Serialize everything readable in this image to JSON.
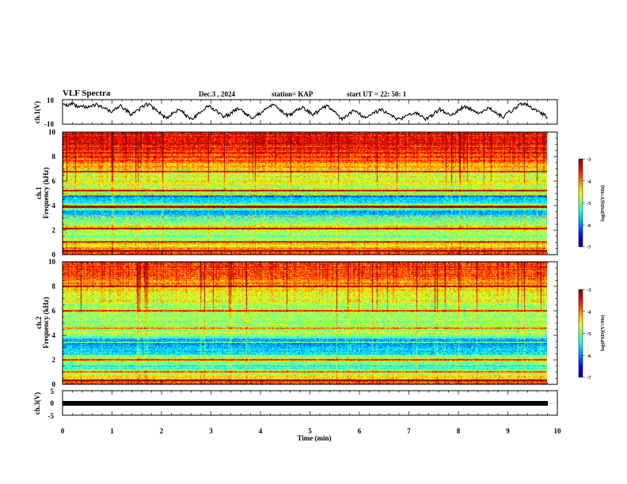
{
  "header": {
    "title": "VLF Spectra",
    "date": "Dec.3  , 2024",
    "station": "station= KAP",
    "start_ut": "start  UT  =   22: 50: 1"
  },
  "chart_data": [
    {
      "type": "line",
      "name": "ch1-waveform",
      "ylabel": "ch.1(V)",
      "ylim": [
        -10,
        10
      ],
      "ytick_labels": [
        "10",
        "-10"
      ],
      "xlim": [
        0,
        10
      ],
      "x_end": 9.8,
      "samples": [
        6,
        5,
        7,
        4,
        6,
        3,
        5,
        6,
        4,
        2,
        0,
        3,
        5,
        1,
        -2,
        0,
        3,
        6,
        5,
        2,
        -1,
        -5,
        -3,
        0,
        2,
        -2,
        -6,
        -4,
        -1,
        3,
        5,
        2,
        -1,
        -4,
        -2,
        1,
        3,
        0,
        -3,
        -5,
        -2,
        0,
        4,
        6,
        3,
        0,
        -3,
        -1,
        2,
        4,
        1,
        -2,
        0,
        3,
        5,
        2,
        -2,
        -6,
        -3,
        0,
        1,
        -3,
        -5,
        -2,
        0,
        2,
        0,
        -3,
        -5,
        -6,
        -4,
        -2,
        0,
        -3,
        -6,
        -4,
        -1,
        2,
        0,
        -3,
        -1,
        2,
        4,
        3,
        0,
        -2,
        0,
        3,
        1,
        -2,
        -4,
        -1,
        2,
        5,
        7,
        6,
        3,
        0,
        -2,
        -4
      ]
    },
    {
      "type": "heatmap",
      "name": "ch1-spectrogram",
      "ylabel": "Frequency  (kHz)",
      "channel_label": "ch.1",
      "ylim": [
        0,
        10
      ],
      "ytick_labels": [
        "0",
        "2",
        "4",
        "6",
        "8",
        "10"
      ],
      "xlim": [
        0,
        9.8
      ],
      "colorbar": {
        "label": "log(PSD)(V²/Hz)",
        "range": [
          -7,
          -3
        ],
        "tick_labels": [
          "-3",
          "-4",
          "-5",
          "-6",
          "-7"
        ]
      },
      "level_profile": [
        [
          0.0,
          -3.6
        ],
        [
          0.5,
          -4.2
        ],
        [
          1.0,
          -4.6
        ],
        [
          1.4,
          -5.0
        ],
        [
          1.8,
          -4.8
        ],
        [
          2.2,
          -4.4
        ],
        [
          2.6,
          -5.0
        ],
        [
          3.0,
          -5.4
        ],
        [
          3.5,
          -6.0
        ],
        [
          3.9,
          -4.2
        ],
        [
          4.3,
          -5.6
        ],
        [
          4.8,
          -6.0
        ],
        [
          5.2,
          -4.4
        ],
        [
          5.6,
          -4.8
        ],
        [
          6.0,
          -4.6
        ],
        [
          6.6,
          -4.6
        ],
        [
          7.2,
          -4.3
        ],
        [
          7.8,
          -3.8
        ],
        [
          8.6,
          -3.6
        ],
        [
          9.3,
          -3.5
        ],
        [
          10.0,
          -3.6
        ]
      ],
      "tone_lines_khz": [
        0.3,
        1.0,
        2.1,
        3.0,
        3.9,
        4.9,
        5.2,
        6.8
      ]
    },
    {
      "type": "heatmap",
      "name": "ch2-spectrogram",
      "ylabel": "Frequency  (kHz)",
      "channel_label": "ch.2",
      "ylim": [
        0,
        10
      ],
      "ytick_labels": [
        "0",
        "2",
        "4",
        "6",
        "8",
        "10"
      ],
      "xlim": [
        0,
        9.8
      ],
      "colorbar": {
        "label": "log(PSD)(V²/Hz)",
        "range": [
          -7,
          -3
        ],
        "tick_labels": [
          "-3",
          "-4",
          "-5",
          "-6",
          "-7"
        ]
      },
      "level_profile": [
        [
          0.0,
          -3.6
        ],
        [
          0.5,
          -4.4
        ],
        [
          1.0,
          -5.0
        ],
        [
          1.5,
          -5.4
        ],
        [
          2.0,
          -4.6
        ],
        [
          2.5,
          -5.5
        ],
        [
          3.0,
          -5.8
        ],
        [
          3.5,
          -6.2
        ],
        [
          4.0,
          -4.8
        ],
        [
          4.5,
          -5.0
        ],
        [
          5.0,
          -4.9
        ],
        [
          5.5,
          -4.8
        ],
        [
          6.0,
          -4.9
        ],
        [
          6.5,
          -4.8
        ],
        [
          7.0,
          -4.6
        ],
        [
          7.5,
          -4.4
        ],
        [
          8.0,
          -4.2
        ],
        [
          8.5,
          -4.0
        ],
        [
          9.0,
          -3.8
        ],
        [
          9.5,
          -3.8
        ],
        [
          10.0,
          -3.6
        ]
      ],
      "tone_lines_khz": [
        0.3,
        1.0,
        2.0,
        3.4,
        4.6,
        6.0,
        8.0
      ]
    },
    {
      "type": "line",
      "name": "ch3-waveform",
      "ylabel": "ch.3(V)",
      "ylim": [
        -5,
        5
      ],
      "ytick_labels": [
        "5",
        "0",
        "-5"
      ],
      "xlim": [
        0,
        10
      ],
      "x_end": 9.8,
      "level": 0
    }
  ],
  "xaxis": {
    "label": "Time  (min)",
    "tick_labels": [
      "0",
      "1",
      "2",
      "3",
      "4",
      "5",
      "6",
      "7",
      "8",
      "9",
      "10"
    ]
  },
  "colors": {
    "axis": "#000000",
    "background": "#ffffff"
  }
}
